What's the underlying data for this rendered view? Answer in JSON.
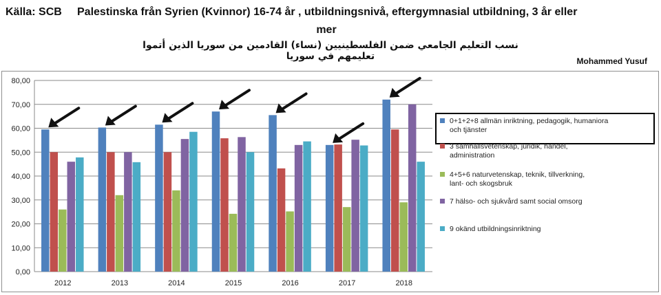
{
  "header": {
    "source": "Källa: SCB",
    "title_line1": "Palestinska från Syrien (Kvinnor) 16-74 år , utbildningsnivå, eftergymnasial utbildning, 3 år eller",
    "title_line2": "mer",
    "title_arabic": "نسب التعليم الجامعي ضمن الفلسطينيين (نساء) القادمين من سوريا الذين أتموا تعليمهم في سوريا",
    "author": "Mohammed Yusuf"
  },
  "colors": {
    "series": [
      "#4f81bd",
      "#c0504d",
      "#9bbb59",
      "#8064a2",
      "#4bacc6"
    ],
    "grid": "#8a8a8a",
    "arrow": "#111111"
  },
  "chart_data": {
    "type": "bar",
    "categories": [
      "2012",
      "2013",
      "2014",
      "2015",
      "2016",
      "2017",
      "2018"
    ],
    "series": [
      {
        "name": "0+1+2+8 allmän inriktning, pedagogik, humaniora och tjänster",
        "values": [
          59.5,
          60.3,
          61.5,
          67.0,
          65.5,
          53.0,
          72.0
        ]
      },
      {
        "name": "3 samhällsvetenskap, juridik, handel, administration",
        "values": [
          50.0,
          50.0,
          50.0,
          55.8,
          43.2,
          53.2,
          59.5
        ]
      },
      {
        "name": "4+5+6 naturvetenskap, teknik, tillverkning, lant- och skogsbruk",
        "values": [
          26.0,
          32.0,
          34.0,
          24.2,
          25.2,
          27.0,
          29.0
        ]
      },
      {
        "name": "7 hälso- och sjukvård samt social omsorg",
        "values": [
          46.0,
          50.0,
          55.5,
          56.3,
          53.0,
          55.2,
          70.0
        ]
      },
      {
        "name": "9 okänd utbildningsinriktning",
        "values": [
          47.8,
          45.8,
          58.5,
          50.0,
          54.5,
          52.8,
          46.0
        ]
      }
    ],
    "yticks": [
      "0,00",
      "10,00",
      "20,00",
      "30,00",
      "40,00",
      "50,00",
      "60,00",
      "70,00",
      "80,00"
    ],
    "ylim": [
      0,
      80
    ],
    "grid": true,
    "legend_position": "right",
    "highlighted_series": 0,
    "annotations": "arrows pointing at the first series bar in each year"
  }
}
